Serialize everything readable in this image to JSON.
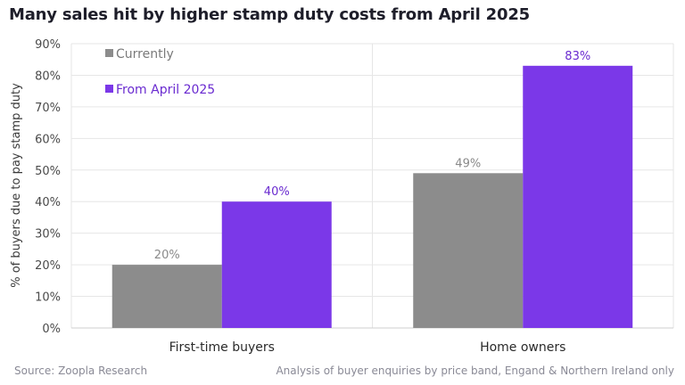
{
  "page": {
    "title": "Many sales hit by higher stamp duty costs from April 2025",
    "source": "Source: Zoopla Research",
    "note": "Analysis of buyer enquiries by price band, Engand & Northern Ireland only"
  },
  "colors": {
    "currently": "#8c8c8c",
    "from_april": "#7b38e8",
    "grid": "#e6e6e6",
    "axis_text": "#4a4a4a",
    "label_currently": "#8a8a8a",
    "label_april": "#6a2bd0"
  },
  "chart_data": {
    "type": "bar",
    "title": "Many sales hit by higher stamp duty costs from April 2025",
    "xlabel": "",
    "ylabel": "% of buyers due to pay stamp duty",
    "ylim": [
      0,
      90
    ],
    "yticks": [
      0,
      10,
      20,
      30,
      40,
      50,
      60,
      70,
      80,
      90
    ],
    "ytick_labels": [
      "0%",
      "10%",
      "20%",
      "30%",
      "40%",
      "50%",
      "60%",
      "70%",
      "80%",
      "90%"
    ],
    "categories": [
      "First-time buyers",
      "Home owners"
    ],
    "series": [
      {
        "name": "Currently",
        "values": [
          20,
          49
        ],
        "labels": [
          "20%",
          "49%"
        ]
      },
      {
        "name": "From April 2025",
        "values": [
          40,
          83
        ],
        "labels": [
          "40%",
          "83%"
        ]
      }
    ],
    "legend": {
      "position": "top-left",
      "entries": [
        "Currently",
        "From April 2025"
      ]
    },
    "grid": true
  }
}
